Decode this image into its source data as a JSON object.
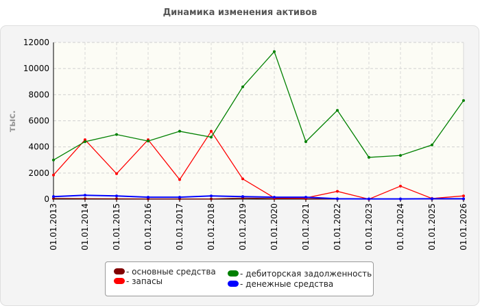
{
  "chart_data": {
    "type": "line",
    "title": "Динамика изменения активов",
    "ylabel": "тыс.",
    "xlabel": "",
    "ylim": [
      0,
      12000
    ],
    "y_ticks": [
      "0",
      "2000",
      "4000",
      "6000",
      "8000",
      "10000",
      "12000"
    ],
    "grid": true,
    "legend_position": "bottom",
    "categories": [
      "01.01.2013",
      "01.01.2014",
      "01.01.2015",
      "01.01.2016",
      "01.01.2017",
      "01.01.2018",
      "01.01.2019",
      "01.01.2020",
      "01.01.2021",
      "01.01.2022",
      "01.01.2023",
      "01.01.2024",
      "01.01.2025",
      "01.01.2026"
    ],
    "series": [
      {
        "name": "- основные средства",
        "color": "#800000",
        "values": [
          50,
          40,
          30,
          20,
          20,
          20,
          80,
          40,
          30,
          20,
          10,
          10,
          10,
          10
        ]
      },
      {
        "name": "- запасы",
        "color": "#ff0000",
        "values": [
          1850,
          4550,
          1950,
          4550,
          1500,
          5200,
          1550,
          100,
          100,
          600,
          0,
          1000,
          50,
          250
        ]
      },
      {
        "name": "- дебиторская задолженность",
        "color": "#008000",
        "values": [
          3000,
          4400,
          4950,
          4450,
          5200,
          4750,
          8600,
          11300,
          4400,
          6800,
          3200,
          3350,
          4150,
          7550
        ]
      },
      {
        "name": "- денежные средства",
        "color": "#0000ff",
        "values": [
          200,
          300,
          250,
          150,
          150,
          250,
          200,
          150,
          150,
          30,
          20,
          20,
          30,
          30
        ]
      }
    ]
  }
}
